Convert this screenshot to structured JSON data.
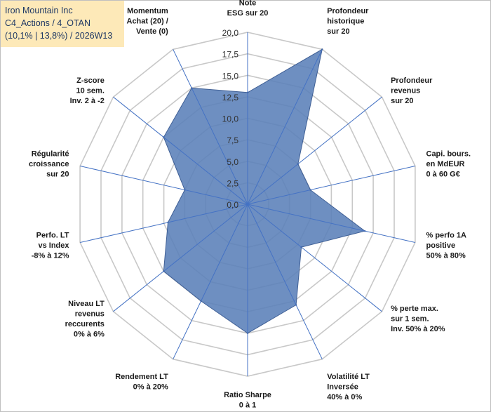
{
  "header": {
    "line1": "Iron Mountain Inc",
    "line2": "C4_Actions / 4_OTAN",
    "line3": "(10,1% | 13,8%) / 2026W13"
  },
  "chart_data": {
    "type": "radar",
    "title": "Iron Mountain Inc",
    "rmin": 0,
    "rmax": 20,
    "tick_step": 2.5,
    "tick_labels": [
      "0,0",
      "2,5",
      "5,0",
      "7,5",
      "10,0",
      "12,5",
      "15,0",
      "17,5",
      "20,0"
    ],
    "categories": [
      [
        "Note",
        "ESG sur 20"
      ],
      [
        "Profondeur",
        "historique",
        "sur 20"
      ],
      [
        "Profondeur",
        "revenus",
        "sur 20"
      ],
      [
        "Capi. bours.",
        "en MdEUR",
        "0 à 60 G€"
      ],
      [
        "% perfo 1A",
        "positive",
        "50% à 80%"
      ],
      [
        "% perte max.",
        "sur 1 sem.",
        "Inv. 50% à 20%"
      ],
      [
        "Volatilité LT",
        "Inversée",
        "40% à 0%"
      ],
      [
        "Ratio Sharpe",
        "0 à 1"
      ],
      [
        "Rendement LT",
        "0% à 20%"
      ],
      [
        "Niveau LT",
        "revenus",
        "reccurents",
        "0% à 6%"
      ],
      [
        "Perfo. LT",
        "vs Index",
        "-8% à 12%"
      ],
      [
        "Régularité",
        "croissance",
        "sur 20"
      ],
      [
        "Z-score",
        "10 sem.",
        "Inv. 2 à -2"
      ],
      [
        "Momentum",
        "Achat (20) /",
        "Vente (0)"
      ]
    ],
    "series": [
      {
        "name": "Iron Mountain Inc",
        "values": [
          13.0,
          20.0,
          7.5,
          7.5,
          14.0,
          8.0,
          13.0,
          15.0,
          12.5,
          12.5,
          9.5,
          7.5,
          12.5,
          15.0
        ],
        "color": "#5a7fb8",
        "edge_color": "#3f5f95"
      }
    ],
    "grid_color": "#c8c8c8",
    "axis_color": "#4472c4"
  }
}
